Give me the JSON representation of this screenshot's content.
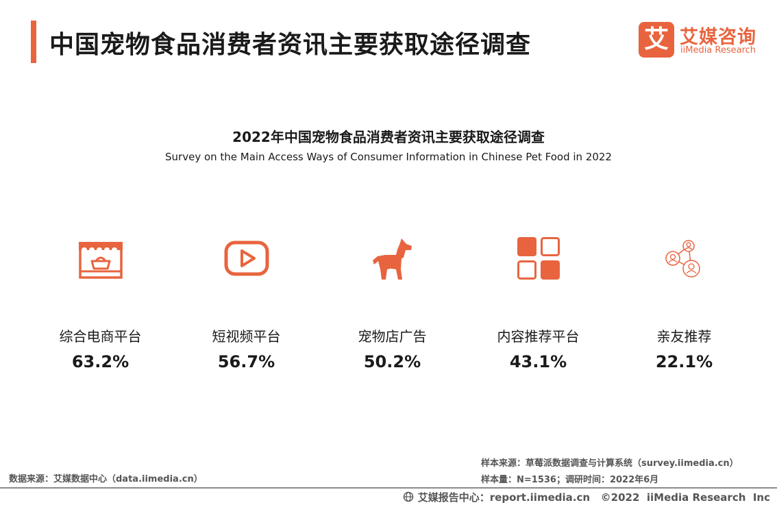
{
  "header": {
    "title": "中国宠物食品消费者资讯主要获取途径调查",
    "accent_color": "#e8643f"
  },
  "logo": {
    "mark": "艾",
    "name_cn": "艾媒咨询",
    "name_en": "iiMedia Research"
  },
  "chart_data": {
    "type": "table",
    "title": "2022年中国宠物食品消费者资讯主要获取途径调查",
    "subtitle": "Survey on the Main Access Ways of Consumer Information in Chinese Pet Food in 2022",
    "categories": [
      "综合电商平台",
      "短视频平台",
      "宠物店广告",
      "内容推荐平台",
      "亲友推荐"
    ],
    "values": [
      63.2,
      56.7,
      50.2,
      43.1,
      22.1
    ],
    "value_labels": [
      "63.2%",
      "56.7%",
      "50.2%",
      "43.1%",
      "22.1%"
    ],
    "unit": "%",
    "icons": [
      "storefront-basket-icon",
      "video-play-icon",
      "dog-icon",
      "app-grid-icon",
      "people-network-icon"
    ],
    "icon_color": "#e8643f"
  },
  "source": {
    "left": "数据来源：艾媒数据中心（data.iimedia.cn）",
    "sample_source": "样本来源：草莓派数据调查与计算系统（survey.iimedia.cn）",
    "sample_info": "样本量：N=1536；调研时间：2022年6月"
  },
  "footer": {
    "text": "艾媒报告中心：report.iimedia.cn   ©2022  iiMedia Research  Inc"
  }
}
